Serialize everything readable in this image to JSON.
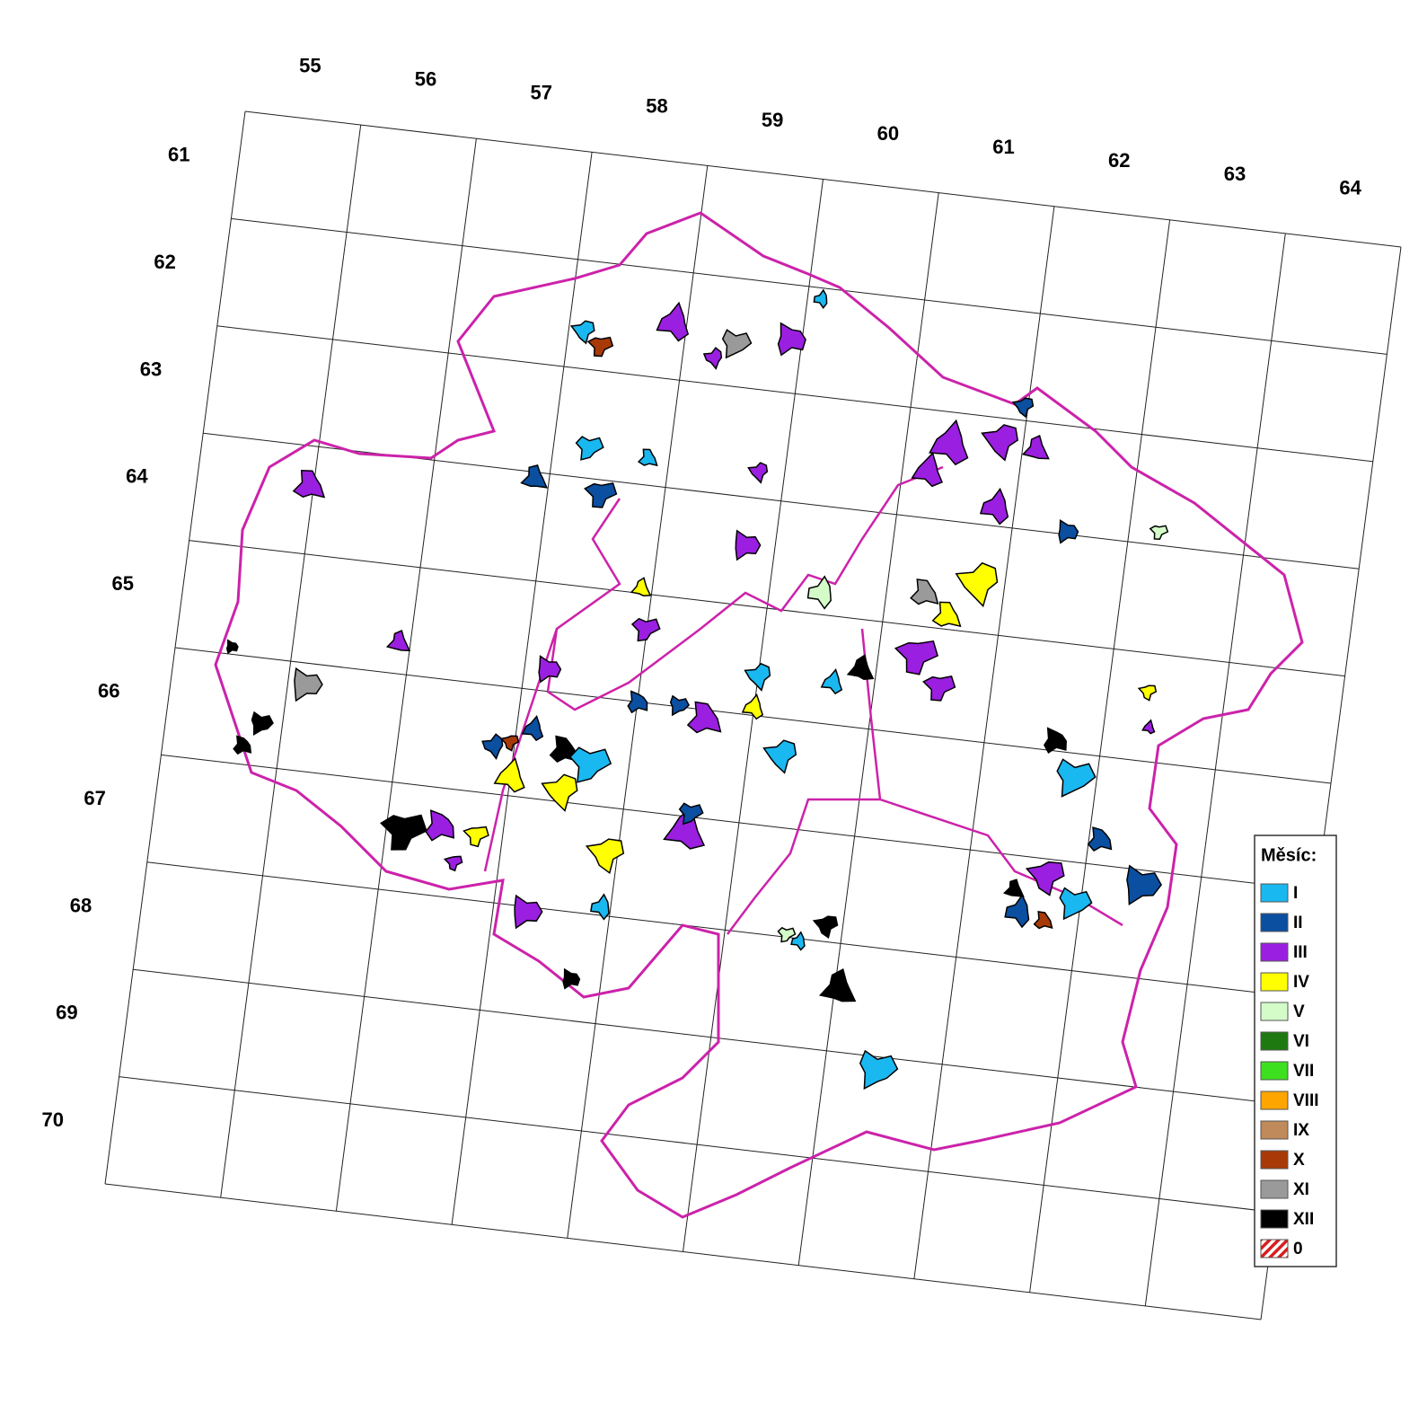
{
  "map": {
    "column_labels": [
      55,
      56,
      57,
      58,
      59,
      60,
      61,
      62,
      63,
      64
    ],
    "row_labels": [
      61,
      62,
      63,
      64,
      65,
      66,
      67,
      68,
      69,
      70
    ],
    "legend": {
      "title": "Měsíc:",
      "items": [
        {
          "label": "I",
          "color": "#1ab8f0"
        },
        {
          "label": "II",
          "color": "#0a4fa0"
        },
        {
          "label": "III",
          "color": "#9b1fe0"
        },
        {
          "label": "IV",
          "color": "#ffff00"
        },
        {
          "label": "V",
          "color": "#d4fcc8"
        },
        {
          "label": "VI",
          "color": "#1e7a10"
        },
        {
          "label": "VII",
          "color": "#3de01e"
        },
        {
          "label": "VIII",
          "color": "#ffa500"
        },
        {
          "label": "IX",
          "color": "#c08a5a"
        },
        {
          "label": "X",
          "color": "#a83a08"
        },
        {
          "label": "XI",
          "color": "#9a9a9a"
        },
        {
          "label": "XII",
          "color": "#000000"
        },
        {
          "label": "0",
          "color": "#d81e1e",
          "pattern": "hatch"
        }
      ]
    }
  }
}
